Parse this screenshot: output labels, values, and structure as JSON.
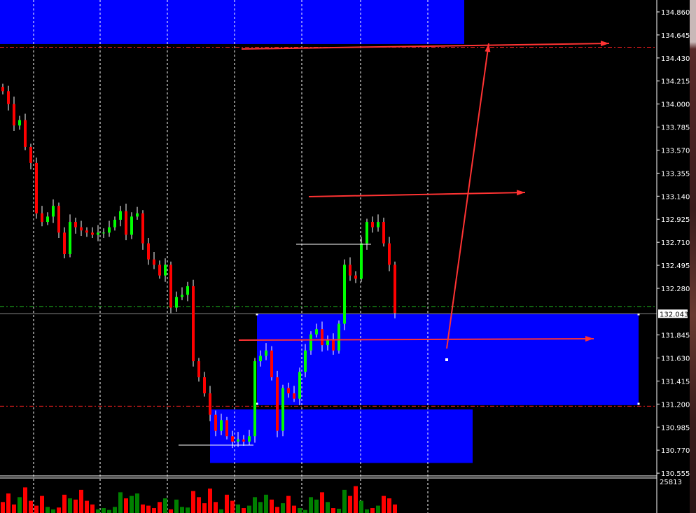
{
  "chart_data": {
    "type": "candlestick",
    "yaxis": {
      "ticks": [
        "134.860",
        "134.645",
        "134.430",
        "134.215",
        "134.000",
        "133.785",
        "133.570",
        "133.355",
        "133.140",
        "132.925",
        "132.710",
        "132.495",
        "132.280",
        "131.845",
        "131.630",
        "131.415",
        "131.200",
        "130.985",
        "130.770",
        "130.555"
      ],
      "range": [
        130.555,
        134.86
      ],
      "current_price_label": "132.043",
      "current_price": 132.043
    },
    "closes": [
      134.12,
      134.0,
      133.8,
      133.85,
      133.6,
      133.45,
      132.98,
      132.9,
      132.95,
      133.05,
      132.8,
      132.6,
      132.9,
      132.85,
      132.82,
      132.8,
      132.78,
      132.8,
      132.8,
      132.85,
      132.92,
      133.0,
      132.78,
      132.95,
      132.98,
      132.7,
      132.55,
      132.5,
      132.4,
      132.5,
      132.1,
      132.2,
      132.22,
      132.3,
      131.6,
      131.45,
      131.3,
      131.1,
      130.95,
      131.05,
      130.9,
      130.85,
      130.87,
      130.85,
      130.9,
      131.6,
      131.65,
      131.7,
      131.45,
      130.95,
      131.35,
      131.3,
      131.25,
      131.5,
      131.7,
      131.85,
      131.9,
      131.75,
      131.8,
      131.7,
      131.95,
      132.5,
      132.4,
      132.37,
      132.7,
      132.9,
      132.85,
      132.9,
      132.7,
      132.5,
      132.05
    ],
    "volume": {
      "max_label": "25813",
      "max": 25813,
      "values": [
        9000,
        16000,
        7000,
        13000,
        21000,
        10000,
        6000,
        14000,
        5000,
        3000,
        4500,
        15000,
        12000,
        11000,
        19000,
        10000,
        7000,
        3000,
        4000,
        2500,
        5000,
        17000,
        12000,
        14000,
        16000,
        7000,
        6000,
        4000,
        9000,
        12000,
        3000,
        11000,
        5000,
        4500,
        18000,
        13000,
        8000,
        20000,
        9000,
        3000,
        15000,
        10000,
        7000,
        4000,
        6000,
        13000,
        9000,
        15000,
        11000,
        5000,
        8000,
        14000,
        6000,
        4000,
        2500,
        13000,
        11000,
        17000,
        9000,
        4000,
        3500,
        19000,
        14000,
        22000,
        10000,
        3000,
        4000,
        6000,
        14000,
        12000,
        7000
      ]
    },
    "levels": [
      {
        "price": 134.53,
        "color": "#ff2020",
        "style": "dash-dot"
      },
      {
        "price": 132.11,
        "color": "#1fbf1f",
        "style": "dash-dot"
      },
      {
        "price": 131.18,
        "color": "#ff2020",
        "style": "dash-dot"
      },
      {
        "price": 132.043,
        "color": "#8a8a8a",
        "style": "solid"
      }
    ],
    "zones": [
      {
        "from": 134.98,
        "to": 134.56,
        "color": "#0000ff"
      },
      {
        "from": 132.043,
        "to": 131.19,
        "color": "#0000ff"
      },
      {
        "from": 131.15,
        "to": 130.65,
        "color": "#0000ff"
      }
    ],
    "colors": {
      "up": "#00ff00",
      "down": "#ff0000",
      "vol_up": "#008000",
      "vol_down": "#ff0000",
      "arrow": "#ff3333",
      "background": "#000000"
    }
  }
}
